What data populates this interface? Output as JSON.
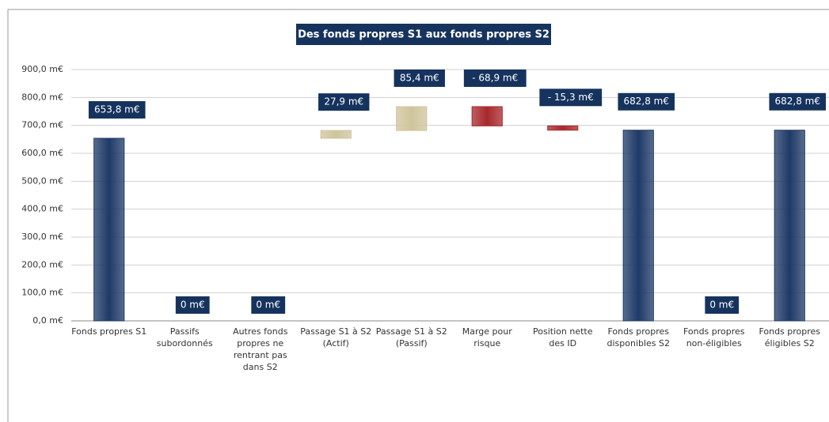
{
  "chart_data": {
    "type": "waterfall",
    "title": "Des fonds propres S1 aux fonds propres S2",
    "categories": [
      "Fonds propres S1",
      "Passifs subordonnés",
      "Autres fonds propres ne rentrant pas dans S2",
      "Passage S1 à S2 (Actif)",
      "Passage S1 à S2 (Passif)",
      "Marge pour risque",
      "Position nette des ID",
      "Fonds propres disponibles S2",
      "Fonds propres non-éligibles",
      "Fonds propres éligibles S2"
    ],
    "values": [
      653.8,
      0,
      0,
      27.9,
      85.4,
      -68.9,
      -15.3,
      682.8,
      0,
      682.8
    ],
    "value_labels": [
      "653,8 m€",
      "0 m€",
      "0 m€",
      "27,9 m€",
      "85,4 m€",
      "- 68,9 m€",
      "- 15,3 m€",
      "682,8 m€",
      "0 m€",
      "682,8 m€"
    ],
    "bar_types": [
      "total",
      "delta",
      "delta",
      "delta",
      "delta",
      "delta",
      "delta",
      "total",
      "delta",
      "total"
    ],
    "colors": [
      "#1f3a68",
      "#1f3a68",
      "#1f3a68",
      "#cfc49c",
      "#cfc49c",
      "#a8282c",
      "#a8282c",
      "#1f3a68",
      "#1f3a68",
      "#1f3a68"
    ],
    "ylim": [
      0,
      900
    ],
    "yticks": [
      {
        "value": 0,
        "label": "0,0 m€"
      },
      {
        "value": 100,
        "label": "100,0 m€"
      },
      {
        "value": 200,
        "label": "200,0 m€"
      },
      {
        "value": 300,
        "label": "300,0 m€"
      },
      {
        "value": 400,
        "label": "400,0 m€"
      },
      {
        "value": 500,
        "label": "500,0 m€"
      },
      {
        "value": 600,
        "label": "600,0 m€"
      },
      {
        "value": 700,
        "label": "700,0 m€"
      },
      {
        "value": 800,
        "label": "800,0 m€"
      },
      {
        "value": 900,
        "label": "900,0 m€"
      }
    ],
    "grid": true
  }
}
